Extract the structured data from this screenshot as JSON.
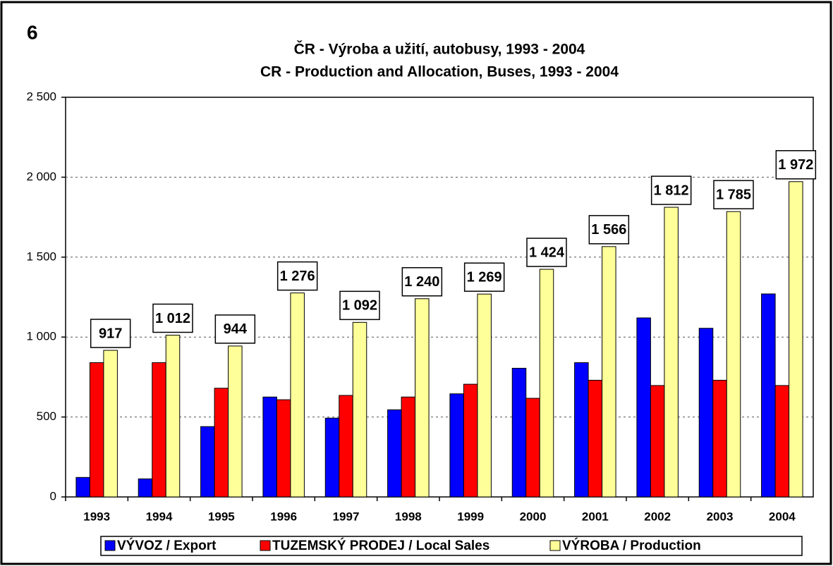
{
  "chart_data": {
    "type": "bar",
    "annotation": "6",
    "title": "ČR - Výroba a užití, autobusy, 1993 - 2004",
    "subtitle": "CR - Production and Allocation, Buses, 1993 - 2004",
    "categories": [
      "1993",
      "1994",
      "1995",
      "1996",
      "1997",
      "1998",
      "1999",
      "2000",
      "2001",
      "2002",
      "2003",
      "2004"
    ],
    "series": [
      {
        "name": "VÝVOZ / Export",
        "color": "#0000ff",
        "values": [
          122,
          113,
          440,
          625,
          493,
          545,
          645,
          805,
          840,
          1120,
          1055,
          1270
        ]
      },
      {
        "name": "TUZEMSKÝ PRODEJ / Local Sales",
        "color": "#ff0000",
        "values": [
          840,
          840,
          680,
          608,
          635,
          625,
          705,
          617,
          730,
          697,
          730,
          697
        ]
      },
      {
        "name": "VÝROBA / Production",
        "color": "#ffff99",
        "values": [
          917,
          1012,
          944,
          1276,
          1092,
          1240,
          1269,
          1424,
          1566,
          1812,
          1785,
          1972
        ],
        "value_labels": [
          "917",
          "1 012",
          "944",
          "1 276",
          "1 092",
          "1 240",
          "1 269",
          "1 424",
          "1 566",
          "1 812",
          "1 785",
          "1 972"
        ]
      }
    ],
    "ylim": [
      0,
      2500
    ],
    "yticks": [
      0,
      500,
      {
        "value": 1000,
        "label": "1 000"
      },
      {
        "value": 1500,
        "label": "1 500"
      },
      {
        "value": 2000,
        "label": "2 000"
      },
      {
        "value": 2500,
        "label": "2 500"
      }
    ],
    "grid": true,
    "legend": "bottom"
  }
}
